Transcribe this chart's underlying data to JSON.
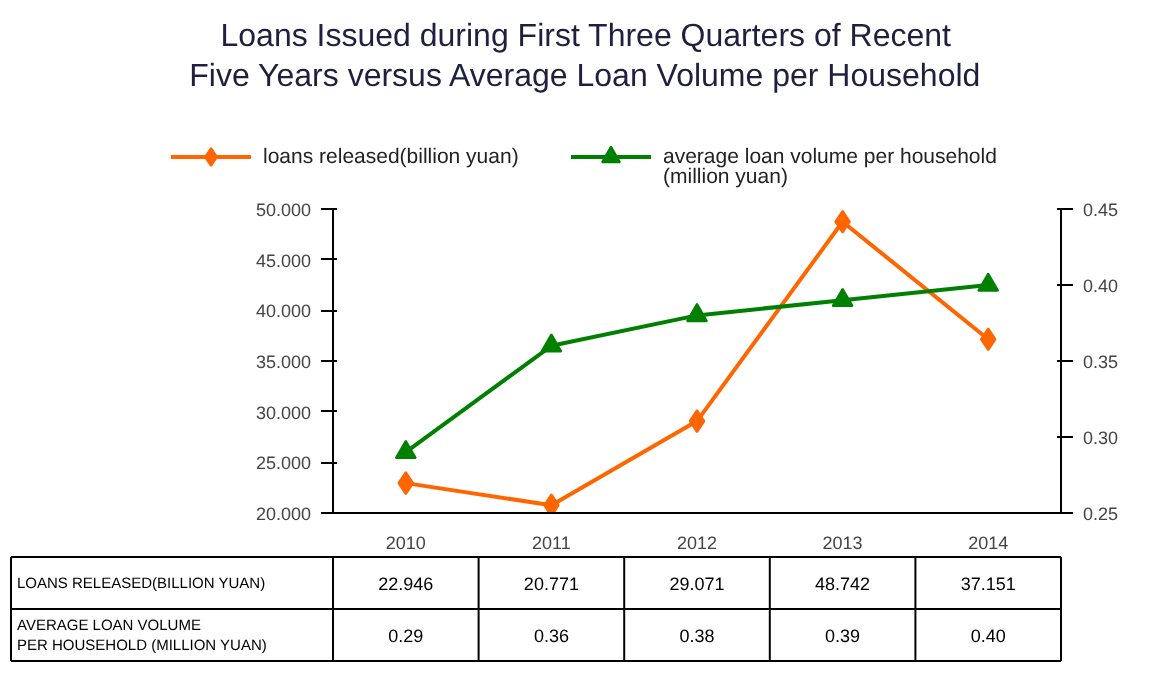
{
  "chart_data": {
    "type": "line",
    "title": "Loans Issued during First Three Quarters of Recent Five Years versus Average Loan Volume per Household",
    "categories": [
      "2010",
      "2011",
      "2012",
      "2013",
      "2014"
    ],
    "series": [
      {
        "name": "loans released(billion yuan)",
        "color": "#ff6600",
        "marker": "diamond",
        "values": [
          22.946,
          20.771,
          29.071,
          48.742,
          37.151
        ],
        "value_labels": [
          "22.946",
          "20.771",
          "29.071",
          "48.742",
          "37.151"
        ]
      },
      {
        "name": "average loan volume per household (million yuan)",
        "color": "#008000",
        "marker": "triangle",
        "axis": "y2",
        "values": [
          0.29,
          0.36,
          0.38,
          0.39,
          0.4
        ],
        "value_labels": [
          "0.29",
          "0.36",
          "0.38",
          "0.39",
          "0.40"
        ]
      }
    ],
    "ylim": [
      20,
      50
    ],
    "yticks": [
      {
        "value": 20,
        "label": "20.000"
      },
      {
        "value": 25,
        "label": "25.000"
      },
      {
        "value": 30,
        "label": "30.000"
      },
      {
        "value": 35,
        "label": "35.000"
      },
      {
        "value": 40,
        "label": "40.000"
      },
      {
        "value": 45,
        "label": "45.000"
      },
      {
        "value": 50,
        "label": "50.000"
      }
    ],
    "y2lim": [
      0.25,
      0.45
    ],
    "y2ticks": [
      0.25,
      {
        "value": 0.3,
        "label": "0.30"
      },
      0.35,
      {
        "value": 0.4,
        "label": "0.40"
      },
      0.45
    ],
    "annotations": [
      "LOANS RELEASED(BILLION YUAN)",
      "AVERAGE LOAN VOLUME\nPER HOUSEHOLD (MILLION YUAN)"
    ],
    "legend": "top",
    "grid": false,
    "line_style": "solid"
  }
}
